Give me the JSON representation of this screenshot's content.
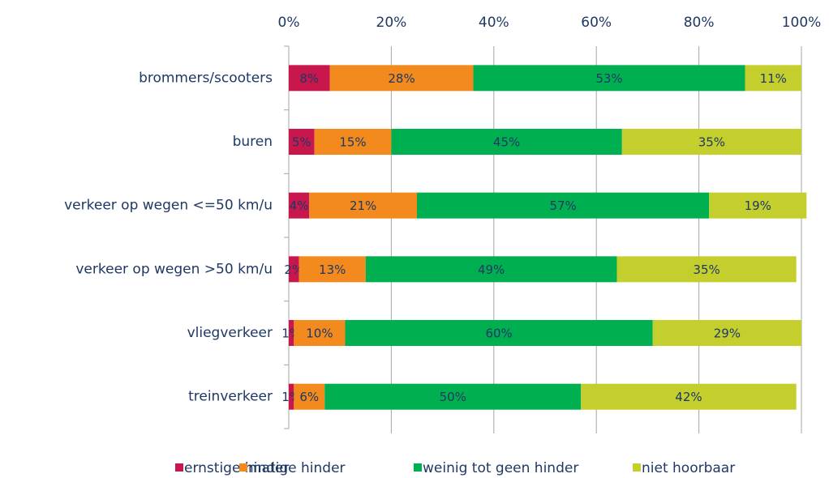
{
  "chart_data": {
    "type": "stacked_bar_horizontal",
    "categories": [
      "brommers/scooters",
      "buren",
      "verkeer op wegen <=50 km/u",
      "verkeer op wegen >50 km/u",
      "vliegverkeer",
      "treinverkeer"
    ],
    "series": [
      {
        "name": "ernstige hinder",
        "color": "#c8174d",
        "values": [
          8,
          5,
          4,
          2,
          1,
          1
        ],
        "value_labels": [
          "8%",
          "5%",
          "4%",
          "2%",
          "1%",
          "1%"
        ]
      },
      {
        "name": "matige hinder",
        "color": "#f28a1e",
        "values": [
          28,
          15,
          21,
          13,
          10,
          6
        ],
        "value_labels": [
          "28%",
          "15%",
          "21%",
          "13%",
          "10%",
          "6%"
        ]
      },
      {
        "name": "weinig tot geen hinder",
        "color": "#00b050",
        "values": [
          53,
          45,
          57,
          49,
          60,
          50
        ],
        "value_labels": [
          "53%",
          "45%",
          "57%",
          "49%",
          "60%",
          "50%"
        ]
      },
      {
        "name": "niet hoorbaar",
        "color": "#c4cf2e",
        "values": [
          11,
          35,
          19,
          35,
          29,
          42
        ],
        "value_labels": [
          "11%",
          "35%",
          "19%",
          "35%",
          "29%",
          "42%"
        ]
      }
    ],
    "xlim": [
      0,
      100
    ],
    "xticks": [
      {
        "value": 0,
        "label": "0%"
      },
      {
        "value": 20,
        "label": "20%"
      },
      {
        "value": 40,
        "label": "40%"
      },
      {
        "value": 60,
        "label": "60%"
      },
      {
        "value": 80,
        "label": "80%"
      },
      {
        "value": 100,
        "label": "100%"
      }
    ],
    "grid": true,
    "legend": "bottom"
  }
}
